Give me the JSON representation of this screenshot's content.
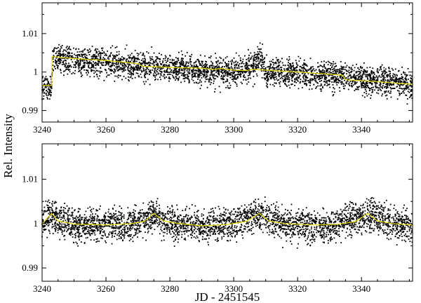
{
  "chart_data": [
    {
      "type": "scatter",
      "panel": "top",
      "xlabel": "",
      "ylabel": "",
      "xlim": [
        3240,
        3356
      ],
      "ylim": [
        0.987,
        1.018
      ],
      "xticks": [
        3240,
        3260,
        3280,
        3300,
        3320,
        3340
      ],
      "xtick_labels": [
        "3240",
        "3260",
        "3280",
        "3300",
        "3320",
        "3340"
      ],
      "yticks": [
        0.99,
        1.0,
        1.01
      ],
      "ytick_labels": [
        "0.99",
        "1",
        "1.01"
      ],
      "grid": false,
      "colors": {
        "points": "#000000",
        "fit": "#e8e000"
      },
      "series": [
        {
          "style": "points",
          "x": [
            3240,
            3243,
            3243.2,
            3250,
            3260,
            3270,
            3280,
            3290,
            3300,
            3306,
            3308,
            3310,
            3320,
            3330,
            3340,
            3350,
            3356
          ],
          "y_center": [
            0.9965,
            0.9965,
            1.004,
            1.003,
            1.0025,
            1.0015,
            1.001,
            1.0005,
            1.0,
            1.001,
            1.004,
            1.0,
            0.9995,
            0.999,
            0.998,
            0.9975,
            0.9965
          ],
          "y_spread": 0.0055
        },
        {
          "style": "line",
          "x": [
            3240,
            3243,
            3243.1,
            3250,
            3260,
            3270,
            3271.5,
            3280,
            3290,
            3294,
            3296,
            3300,
            3304,
            3306,
            3320,
            3334,
            3335,
            3345,
            3356
          ],
          "y": [
            0.9965,
            0.9965,
            1.004,
            1.0035,
            1.003,
            1.0022,
            1.0015,
            1.0012,
            1.001,
            1.0007,
            1.0009,
            1.0005,
            1.0004,
            1.0007,
            1.0,
            0.9992,
            0.998,
            0.9975,
            0.9968
          ]
        }
      ]
    },
    {
      "type": "scatter",
      "panel": "bottom",
      "xlabel": "JD - 2451545",
      "ylabel": "Rel. Intensity",
      "xlim": [
        3240,
        3356
      ],
      "ylim": [
        0.987,
        1.018
      ],
      "xticks": [
        3240,
        3260,
        3280,
        3300,
        3320,
        3340
      ],
      "xtick_labels": [
        "3240",
        "3260",
        "3280",
        "3300",
        "3320",
        "3340"
      ],
      "yticks": [
        0.99,
        1.0,
        1.01
      ],
      "ytick_labels": [
        "0.99",
        "1",
        "1.01"
      ],
      "grid": false,
      "colors": {
        "points": "#000000",
        "fit": "#e8e000"
      },
      "series": [
        {
          "style": "points",
          "x": [
            3240,
            3242,
            3250,
            3260,
            3270,
            3275,
            3280,
            3290,
            3300,
            3308,
            3315,
            3320,
            3330,
            3342,
            3350,
            3356
          ],
          "y_center": [
            1.0,
            1.002,
            0.9995,
            0.9995,
            1.0,
            1.002,
            1.0,
            0.9995,
            1.0,
            1.002,
            1.0,
            0.9995,
            0.9995,
            1.002,
            1.0,
            0.9995
          ],
          "y_spread": 0.0055
        },
        {
          "style": "line",
          "x": [
            3240,
            3241.5,
            3243,
            3245,
            3250,
            3260,
            3268,
            3272,
            3275,
            3278,
            3282,
            3290,
            3298,
            3304,
            3308,
            3311,
            3316,
            3325,
            3332,
            3338,
            3342,
            3345,
            3350,
            3356
          ],
          "y": [
            0.9998,
            1.0012,
            1.0023,
            1.0006,
            0.9999,
            0.9997,
            1.0,
            1.0005,
            1.0023,
            1.0006,
            1.0001,
            0.9995,
            0.9998,
            1.0005,
            1.0023,
            1.0006,
            1.0,
            0.9997,
            0.9998,
            1.0004,
            1.0023,
            1.0006,
            1.0,
            0.9997
          ]
        }
      ]
    }
  ]
}
